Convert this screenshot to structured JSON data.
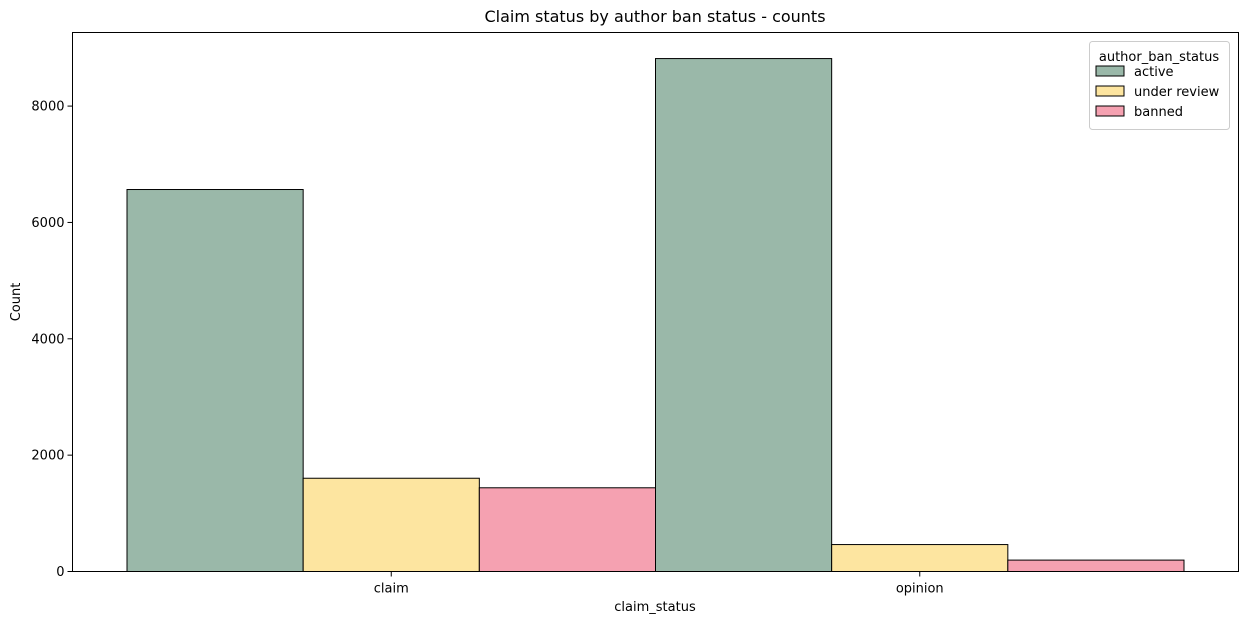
{
  "chart_data": {
    "type": "bar",
    "title": "Claim status by author ban status - counts",
    "xlabel": "claim_status",
    "ylabel": "Count",
    "categories": [
      "claim",
      "opinion"
    ],
    "series": [
      {
        "name": "active",
        "values": [
          6566,
          8817
        ],
        "color": "#9ab8a9"
      },
      {
        "name": "under review",
        "values": [
          1603,
          463
        ],
        "color": "#fde5a0"
      },
      {
        "name": "banned",
        "values": [
          1439,
          196
        ],
        "color": "#f5a1b1"
      }
    ],
    "ylim": [
      0,
      9265
    ],
    "yticks": [
      0,
      2000,
      4000,
      6000,
      8000
    ],
    "ytick_labels": [
      "0",
      "2000",
      "4000",
      "6000",
      "8000"
    ],
    "legend": {
      "title": "author_ban_status",
      "placement": "top-right"
    },
    "grid": false
  }
}
